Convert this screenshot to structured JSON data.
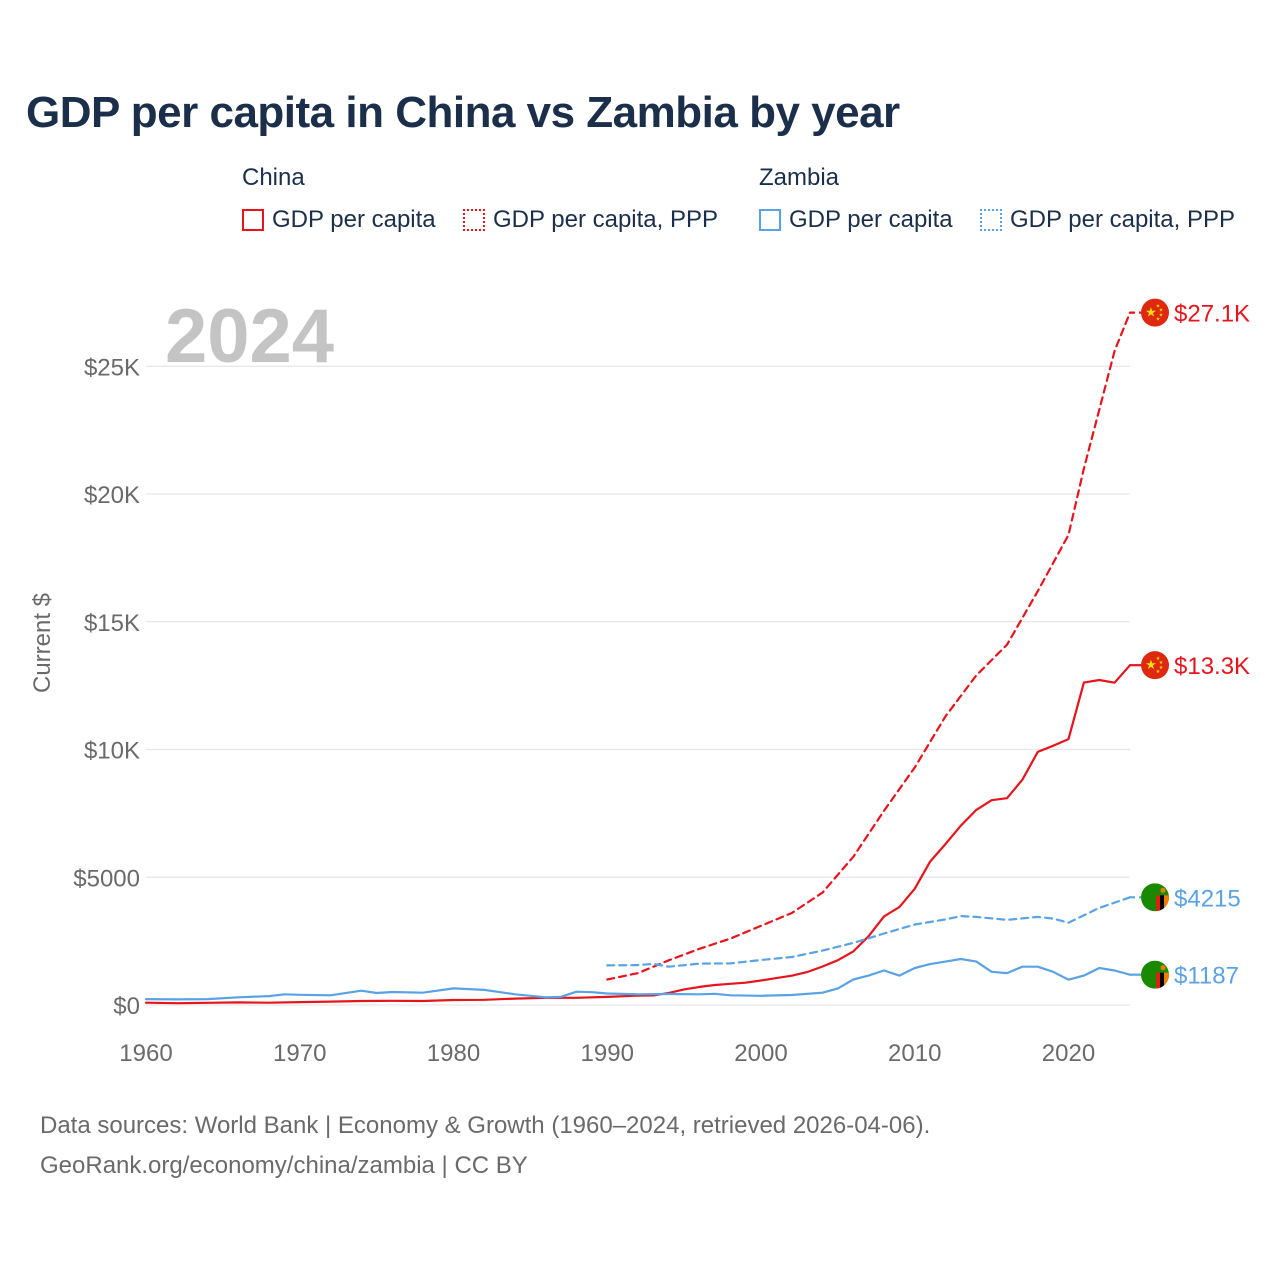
{
  "title": "GDP per capita in China vs Zambia by year",
  "legend": {
    "groups": [
      {
        "name": "China",
        "items": [
          {
            "label": "GDP per capita",
            "style": "solid",
            "color": "#e8141c"
          },
          {
            "label": "GDP per capita, PPP",
            "style": "dotted",
            "color": "#e8141c"
          }
        ]
      },
      {
        "name": "Zambia",
        "items": [
          {
            "label": "GDP per capita",
            "style": "solid",
            "color": "#5aa2e6"
          },
          {
            "label": "GDP per capita, PPP",
            "style": "dotted",
            "color": "#5aa2e6"
          }
        ]
      }
    ]
  },
  "chart_data": {
    "type": "line",
    "title": "GDP per capita in China vs Zambia by year",
    "xlabel": "",
    "ylabel": "Current $",
    "xlim": [
      1960,
      2024
    ],
    "ylim": [
      0,
      27100
    ],
    "x_ticks": [
      1960,
      1970,
      1980,
      1990,
      2000,
      2010,
      2020
    ],
    "y_ticks": [
      {
        "value": 0,
        "label": "$0"
      },
      {
        "value": 5000,
        "label": "$5000"
      },
      {
        "value": 10000,
        "label": "$10K"
      },
      {
        "value": 15000,
        "label": "$15K"
      },
      {
        "value": 20000,
        "label": "$20K"
      },
      {
        "value": 25000,
        "label": "$25K"
      }
    ],
    "grid": true,
    "year_watermark": "2024",
    "series": [
      {
        "name": "China GDP per capita",
        "country": "China",
        "style": "solid",
        "color": "#e8141c",
        "end_label": "$13.3K",
        "flag": "china-flag-icon",
        "x": [
          1960,
          1962,
          1964,
          1966,
          1968,
          1970,
          1972,
          1974,
          1976,
          1978,
          1980,
          1982,
          1984,
          1986,
          1988,
          1990,
          1992,
          1993,
          1994,
          1995,
          1996,
          1997,
          1998,
          1999,
          2000,
          2001,
          2002,
          2003,
          2004,
          2005,
          2006,
          2007,
          2008,
          2009,
          2010,
          2011,
          2012,
          2013,
          2014,
          2015,
          2016,
          2017,
          2018,
          2019,
          2020,
          2021,
          2022,
          2023,
          2024
        ],
        "values": [
          90,
          70,
          85,
          100,
          90,
          113,
          132,
          155,
          165,
          156,
          195,
          203,
          250,
          282,
          283,
          318,
          366,
          377,
          473,
          610,
          709,
          782,
          828,
          873,
          959,
          1053,
          1148,
          1288,
          1508,
          1753,
          2099,
          2694,
          3468,
          3832,
          4550,
          5614,
          6300,
          7020,
          7636,
          8016,
          8094,
          8817,
          9905,
          10144,
          10409,
          12618,
          12720,
          12614,
          13300
        ]
      },
      {
        "name": "China GDP per capita, PPP",
        "country": "China",
        "style": "dashed",
        "color": "#e8141c",
        "end_label": "$27.1K",
        "flag": "china-flag-icon",
        "x": [
          1990,
          1992,
          1994,
          1996,
          1998,
          2000,
          2002,
          2004,
          2006,
          2008,
          2010,
          2012,
          2014,
          2016,
          2018,
          2020,
          2021,
          2022,
          2023,
          2024
        ],
        "values": [
          1000,
          1250,
          1750,
          2200,
          2600,
          3100,
          3600,
          4400,
          5800,
          7600,
          9300,
          11300,
          12900,
          14100,
          16200,
          18400,
          21000,
          23300,
          25600,
          27100
        ]
      },
      {
        "name": "Zambia GDP per capita",
        "country": "Zambia",
        "style": "solid",
        "color": "#5aa2e6",
        "end_label": "$1187",
        "flag": "zambia-flag-icon",
        "x": [
          1960,
          1962,
          1964,
          1966,
          1968,
          1969,
          1970,
          1972,
          1974,
          1975,
          1976,
          1978,
          1980,
          1982,
          1984,
          1986,
          1987,
          1988,
          1989,
          1990,
          1992,
          1994,
          1996,
          1997,
          1998,
          2000,
          2002,
          2004,
          2005,
          2006,
          2007,
          2008,
          2009,
          2010,
          2011,
          2012,
          2013,
          2014,
          2015,
          2016,
          2017,
          2018,
          2019,
          2020,
          2021,
          2022,
          2023,
          2024
        ],
        "values": [
          230,
          220,
          230,
          300,
          350,
          420,
          400,
          380,
          560,
          470,
          510,
          480,
          650,
          590,
          420,
          300,
          320,
          520,
          500,
          450,
          420,
          430,
          420,
          440,
          380,
          360,
          390,
          480,
          650,
          1000,
          1150,
          1350,
          1150,
          1450,
          1600,
          1700,
          1800,
          1700,
          1300,
          1250,
          1500,
          1500,
          1300,
          990,
          1150,
          1450,
          1350,
          1187
        ]
      },
      {
        "name": "Zambia GDP per capita, PPP",
        "country": "Zambia",
        "style": "dashed",
        "color": "#5aa2e6",
        "end_label": "$4215",
        "flag": "zambia-flag-icon",
        "x": [
          1990,
          1992,
          1993,
          1994,
          1996,
          1998,
          2000,
          2002,
          2004,
          2006,
          2008,
          2010,
          2012,
          2013,
          2014,
          2016,
          2018,
          2019,
          2020,
          2022,
          2024
        ],
        "values": [
          1550,
          1560,
          1610,
          1500,
          1620,
          1630,
          1760,
          1880,
          2130,
          2430,
          2800,
          3150,
          3350,
          3480,
          3450,
          3330,
          3450,
          3380,
          3220,
          3800,
          4215
        ]
      }
    ]
  },
  "footer": {
    "line1": "Data sources: World Bank | Economy & Growth (1960–2024, retrieved 2026-04-06).",
    "line2": "GeoRank.org/economy/china/zambia | CC BY"
  }
}
